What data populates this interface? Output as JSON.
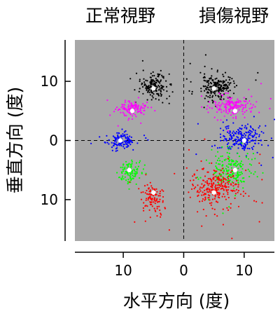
{
  "chart_data": {
    "type": "scatter",
    "panel_titles": [
      "正常視野",
      "損傷視野"
    ],
    "xlabel": "水平方向 (度)",
    "ylabel": "垂直方向 (度)",
    "xlim": [
      -18,
      15
    ],
    "ylim": [
      -17,
      17
    ],
    "x_tick_labels": [
      "10",
      "0",
      "10"
    ],
    "x_tick_values": [
      -10,
      0,
      10
    ],
    "y_tick_labels": [
      "10",
      "0",
      "10"
    ],
    "y_tick_values": [
      10,
      0,
      -10
    ],
    "grid": false,
    "reference_lines": {
      "x": 0,
      "y": 0,
      "style": "dashed"
    },
    "background_color": "#a8a8a8",
    "target_marker_color": "#ffffff",
    "clusters": [
      {
        "color": "#000000",
        "target": [
          -5,
          8.8
        ],
        "center": [
          -5,
          9.3
        ],
        "spread": [
          1.1,
          1.0
        ],
        "count": 170
      },
      {
        "color": "#ff00ff",
        "target": [
          -8.5,
          5
        ],
        "center": [
          -8.7,
          5.3
        ],
        "spread": [
          1.2,
          0.7
        ],
        "count": 130
      },
      {
        "color": "#0000ff",
        "target": [
          -10.5,
          0
        ],
        "center": [
          -10.5,
          0
        ],
        "spread": [
          1.2,
          0.6
        ],
        "count": 140
      },
      {
        "color": "#00ff00",
        "target": [
          -9,
          -5
        ],
        "center": [
          -9,
          -5.3
        ],
        "spread": [
          1.0,
          1.0
        ],
        "count": 110
      },
      {
        "color": "#ff0000",
        "target": [
          -5,
          -8.8
        ],
        "center": [
          -5.2,
          -9.6
        ],
        "spread": [
          1.0,
          1.2
        ],
        "count": 110
      },
      {
        "color": "#000000",
        "target": [
          5,
          8.8
        ],
        "center": [
          5.5,
          9.0
        ],
        "spread": [
          1.3,
          1.0
        ],
        "count": 210
      },
      {
        "color": "#ff00ff",
        "target": [
          8.5,
          5
        ],
        "center": [
          8.3,
          5.8
        ],
        "spread": [
          1.7,
          0.8
        ],
        "count": 170
      },
      {
        "color": "#0000ff",
        "target": [
          10,
          0
        ],
        "center": [
          9.5,
          0.3
        ],
        "spread": [
          1.6,
          1.1
        ],
        "count": 220
      },
      {
        "color": "#00ff00",
        "target": [
          8.5,
          -5
        ],
        "center": [
          8.0,
          -5.0
        ],
        "spread": [
          1.6,
          1.6
        ],
        "count": 190
      },
      {
        "color": "#ff0000",
        "target": [
          5,
          -8.8
        ],
        "center": [
          5.3,
          -8.0
        ],
        "spread": [
          2.0,
          1.7
        ],
        "count": 260
      }
    ]
  }
}
